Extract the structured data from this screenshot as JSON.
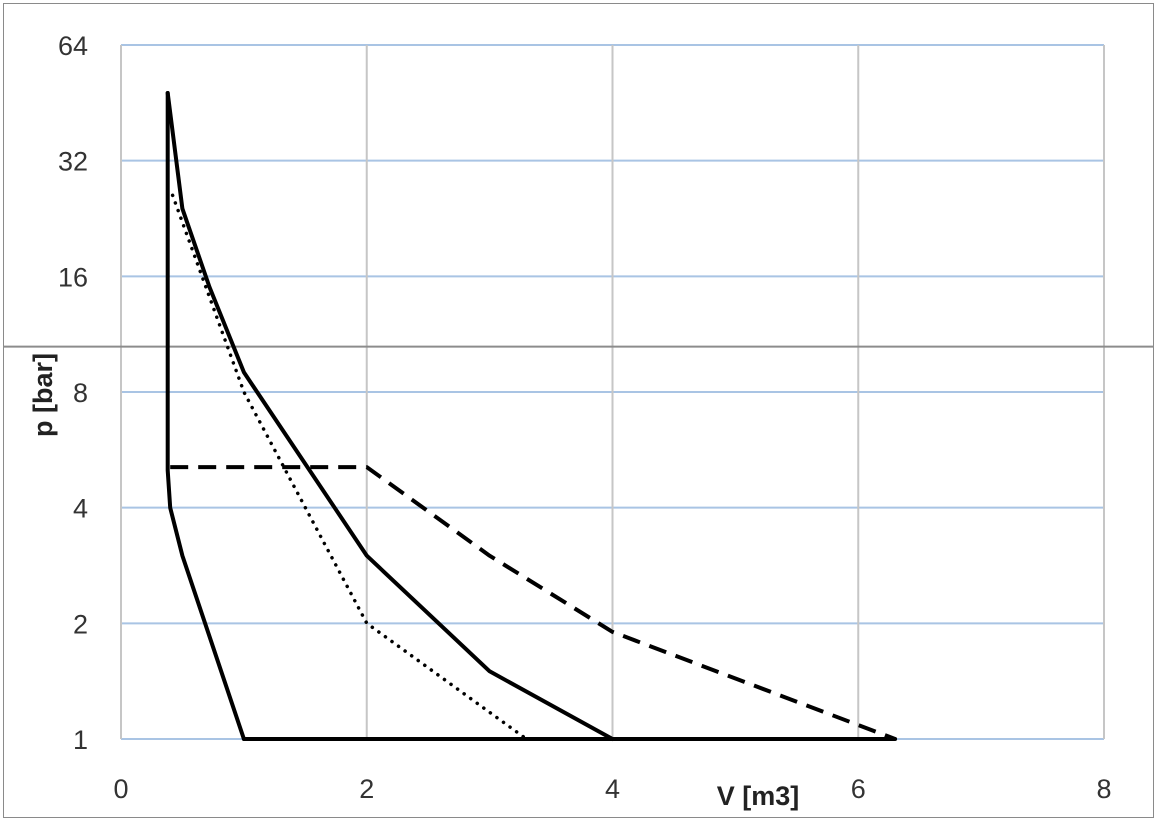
{
  "chart_data": {
    "type": "line",
    "title": "",
    "xlabel": "V [m3]",
    "ylabel": "p [bar]",
    "xlim": [
      0,
      8
    ],
    "ylim": [
      1,
      64
    ],
    "y_scale": "log2",
    "x_ticks": [
      0,
      2,
      4,
      6,
      8
    ],
    "y_ticks": [
      1,
      2,
      4,
      8,
      16,
      32,
      64
    ],
    "grid": true,
    "legend": "none",
    "reference_line": {
      "y": 10.5
    },
    "series": [
      {
        "style": "solid",
        "points": [
          [
            1.0,
            1
          ],
          [
            0.5,
            3
          ],
          [
            0.4,
            4
          ],
          [
            0.38,
            5
          ],
          [
            0.38,
            20
          ],
          [
            0.38,
            48
          ]
        ]
      },
      {
        "style": "solid",
        "points": [
          [
            0.38,
            48
          ],
          [
            0.5,
            24
          ],
          [
            0.72,
            15
          ],
          [
            1.0,
            9
          ],
          [
            2.0,
            3
          ],
          [
            3.0,
            1.5
          ],
          [
            4.0,
            1
          ]
        ]
      },
      {
        "style": "solid",
        "points": [
          [
            1.0,
            1
          ],
          [
            6.3,
            1
          ]
        ]
      },
      {
        "style": "dotted",
        "points": [
          [
            0.42,
            26
          ],
          [
            1.0,
            8
          ],
          [
            2.0,
            2
          ],
          [
            3.3,
            1
          ]
        ]
      },
      {
        "style": "dashed",
        "points": [
          [
            0.4,
            5.1
          ],
          [
            2.0,
            5.1
          ],
          [
            3.0,
            3
          ],
          [
            4.0,
            1.9
          ],
          [
            6.3,
            1
          ]
        ]
      }
    ]
  }
}
